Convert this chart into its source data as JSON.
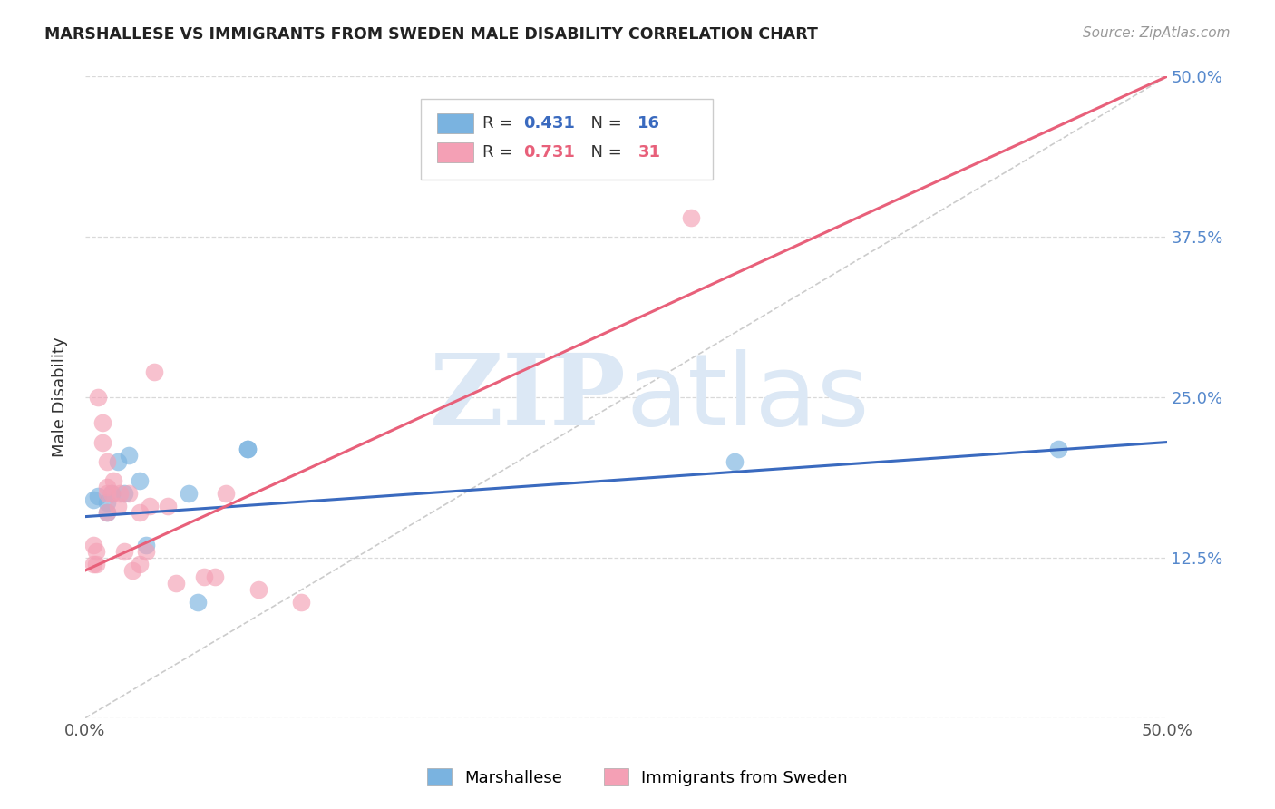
{
  "title": "MARSHALLESE VS IMMIGRANTS FROM SWEDEN MALE DISABILITY CORRELATION CHART",
  "source": "Source: ZipAtlas.com",
  "ylabel": "Male Disability",
  "xlim": [
    0.0,
    0.5
  ],
  "ylim": [
    0.0,
    0.5
  ],
  "xticks": [
    0.0,
    0.1,
    0.2,
    0.3,
    0.4,
    0.5
  ],
  "yticks": [
    0.0,
    0.125,
    0.25,
    0.375,
    0.5
  ],
  "blue_R": 0.431,
  "blue_N": 16,
  "pink_R": 0.731,
  "pink_N": 31,
  "blue_color": "#7ab3e0",
  "pink_color": "#f4a0b5",
  "blue_line_color": "#3a6abf",
  "pink_line_color": "#e8607a",
  "background_color": "#ffffff",
  "grid_color": "#d0d0d0",
  "watermark_color": "#dce8f5",
  "legend_label_blue": "Marshallese",
  "legend_label_pink": "Immigrants from Sweden",
  "blue_scatter_x": [
    0.004,
    0.006,
    0.01,
    0.01,
    0.012,
    0.015,
    0.018,
    0.02,
    0.025,
    0.028,
    0.048,
    0.052,
    0.075,
    0.075,
    0.3,
    0.45
  ],
  "blue_scatter_y": [
    0.17,
    0.173,
    0.168,
    0.16,
    0.175,
    0.2,
    0.175,
    0.205,
    0.185,
    0.135,
    0.175,
    0.09,
    0.21,
    0.21,
    0.2,
    0.21
  ],
  "pink_scatter_x": [
    0.004,
    0.004,
    0.005,
    0.005,
    0.006,
    0.008,
    0.008,
    0.01,
    0.01,
    0.01,
    0.01,
    0.012,
    0.013,
    0.015,
    0.016,
    0.018,
    0.02,
    0.022,
    0.025,
    0.025,
    0.028,
    0.03,
    0.032,
    0.038,
    0.042,
    0.055,
    0.06,
    0.065,
    0.08,
    0.1,
    0.28
  ],
  "pink_scatter_y": [
    0.135,
    0.12,
    0.12,
    0.13,
    0.25,
    0.23,
    0.215,
    0.16,
    0.175,
    0.18,
    0.2,
    0.175,
    0.185,
    0.165,
    0.175,
    0.13,
    0.175,
    0.115,
    0.12,
    0.16,
    0.13,
    0.165,
    0.27,
    0.165,
    0.105,
    0.11,
    0.11,
    0.175,
    0.1,
    0.09,
    0.39
  ],
  "blue_line_x0": 0.0,
  "blue_line_y0": 0.157,
  "blue_line_x1": 0.5,
  "blue_line_y1": 0.215,
  "pink_line_x0": 0.0,
  "pink_line_y0": 0.115,
  "pink_line_x1": 0.5,
  "pink_line_y1": 0.5
}
